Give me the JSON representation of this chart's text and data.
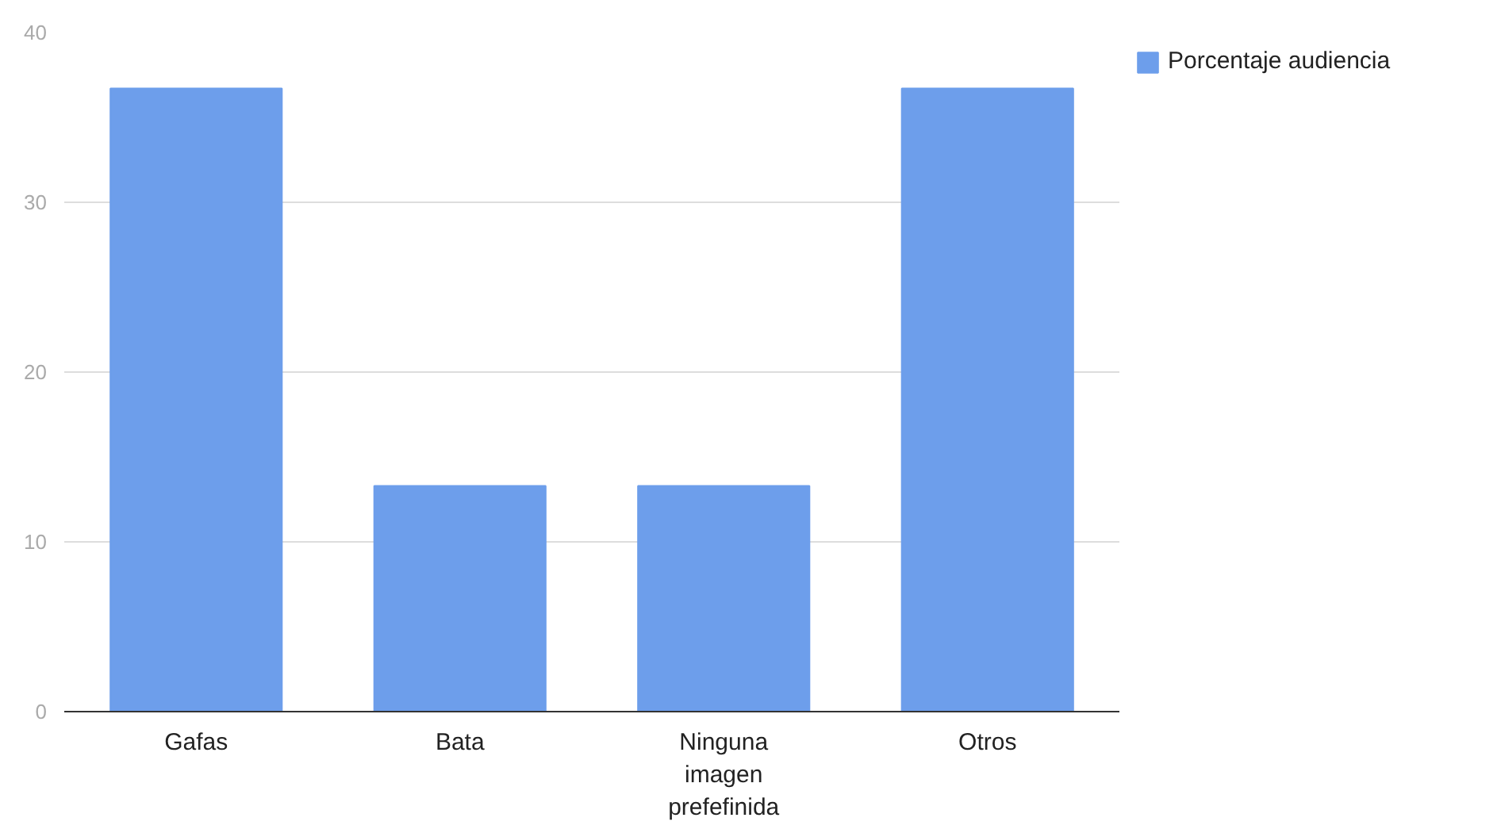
{
  "chart_data": {
    "type": "bar",
    "categories": [
      "Gafas",
      "Bata",
      "Ninguna imagen prefefinida",
      "Otros"
    ],
    "series": [
      {
        "name": "Porcentaje audiencia",
        "color": "#6d9eeb",
        "values": [
          36.7,
          13.3,
          13.3,
          36.7
        ]
      }
    ],
    "ylim": [
      0,
      40
    ],
    "yticks": [
      0,
      10,
      20,
      30,
      40
    ],
    "grid": "y",
    "legend": "top right"
  }
}
